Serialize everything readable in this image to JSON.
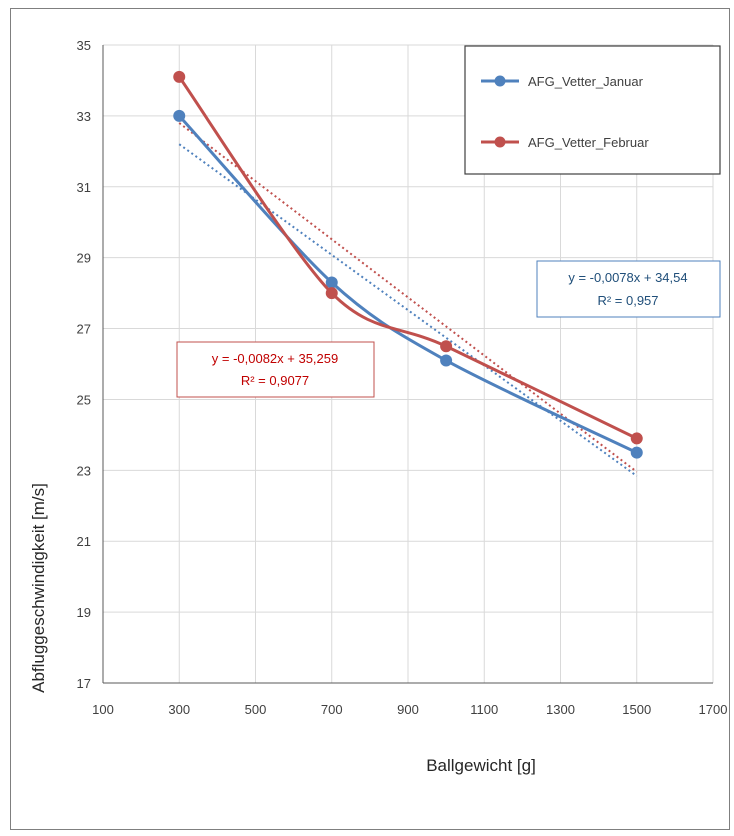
{
  "chart_data": {
    "type": "scatter",
    "xlabel": "Ballgewicht [g]",
    "ylabel": "Abfluggeschwindigkeit [m/s]",
    "xlim": [
      100,
      1700
    ],
    "ylim": [
      17,
      35
    ],
    "x_ticks": [
      "100",
      "300",
      "500",
      "700",
      "900",
      "1100",
      "1300",
      "1500",
      "1700"
    ],
    "y_ticks": [
      "17",
      "19",
      "21",
      "23",
      "25",
      "27",
      "29",
      "31",
      "33",
      "35"
    ],
    "grid": true,
    "legend_position": "top-right",
    "series": [
      {
        "name": "AFG_Vetter_Januar",
        "color": "#4f81bd",
        "x": [
          300,
          700,
          1000,
          1500
        ],
        "y": [
          33.0,
          28.3,
          26.1,
          23.5
        ],
        "trendline": {
          "slope": -0.0078,
          "intercept": 34.54,
          "equation": "y = -0,0078x + 34,54",
          "r2": "R² = 0,957"
        }
      },
      {
        "name": "AFG_Vetter_Februar",
        "color": "#c0504d",
        "x": [
          300,
          700,
          1000,
          1500
        ],
        "y": [
          34.1,
          28.0,
          26.5,
          23.9
        ],
        "trendline": {
          "slope": -0.0082,
          "intercept": 35.259,
          "equation": "y = -0,0082x + 35,259",
          "r2": "R² = 0,9077"
        }
      }
    ]
  }
}
